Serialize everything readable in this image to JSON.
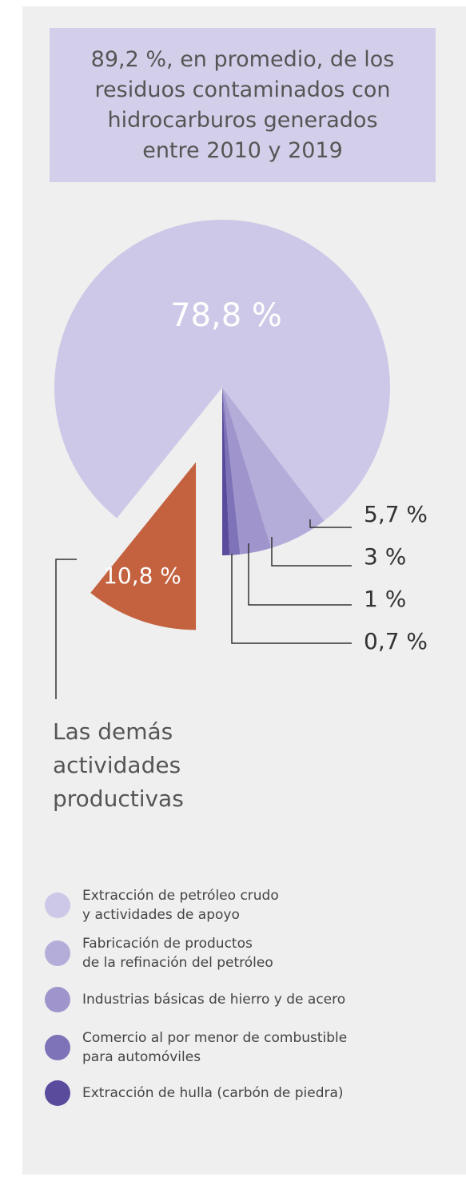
{
  "chart_data": {
    "type": "pie",
    "title": "89,2 %, en promedio, de los\nresiduos contaminados con\nhidrocarburos generados\nentre 2010 y 2019",
    "categories": [
      "Extracción de petróleo crudo\ny actividades de apoyo",
      "Fabricación de productos\nde la refinación del petróleo",
      "Industrias básicas de hierro y de acero",
      "Comercio al por menor de combustible\npara automóviles",
      "Extracción de hulla (carbón de piedra)",
      "Las demás\nactividades\nproductivas"
    ],
    "values": [
      78.8,
      5.7,
      3,
      1,
      0.7,
      10.8
    ],
    "value_labels": [
      "78,8 %",
      "5,7 %",
      "3 %",
      "1 %",
      "0,7 %",
      "10,8 %"
    ],
    "colors": [
      "#cdc8e7",
      "#b5add9",
      "#9f95cc",
      "#7e72b8",
      "#5a4b9d",
      "#c4623f"
    ],
    "exploded": [
      5
    ]
  }
}
